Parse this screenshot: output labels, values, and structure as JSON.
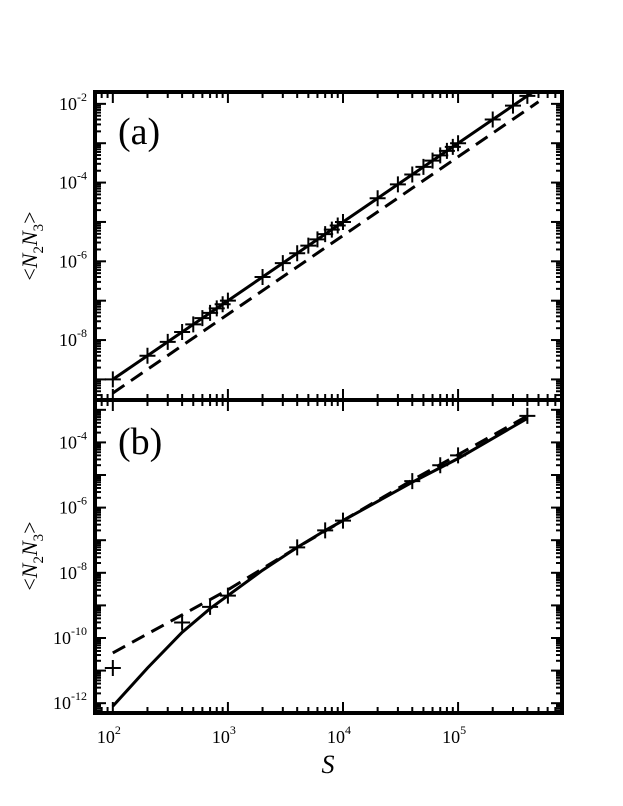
{
  "chart_data": [
    {
      "type": "line",
      "panel_label": "(a)",
      "ylabel": "<N2N3>",
      "ylabel_parts": {
        "open": "<",
        "n1": "N",
        "s1": "2",
        "n2": "N",
        "s2": "3",
        "close": ">"
      },
      "xscale": "log",
      "yscale": "log",
      "xlim": [
        70,
        800000
      ],
      "ylim": [
        3e-10,
        0.02
      ],
      "yticks": [
        {
          "base": "10",
          "exp": "-8",
          "value": 1e-08
        },
        {
          "base": "10",
          "exp": "-6",
          "value": 1e-06
        },
        {
          "base": "10",
          "exp": "-4",
          "value": 0.0001
        },
        {
          "base": "10",
          "exp": "-2",
          "value": 0.01
        }
      ],
      "grid": false,
      "series": [
        {
          "style": "solid",
          "x": [
            100,
            1000000
          ],
          "y": [
            1e-09,
            0.1
          ]
        },
        {
          "style": "dashed",
          "x": [
            100,
            500000
          ],
          "y": [
            4.5e-10,
            0.0113
          ]
        },
        {
          "style": "markers-plus",
          "x": [
            100,
            200,
            300,
            400,
            500,
            600,
            700,
            800,
            900,
            1000,
            2000,
            3000,
            4000,
            5000,
            6000,
            7000,
            8000,
            9000,
            10000,
            20000,
            30000,
            40000,
            50000,
            60000,
            70000,
            80000,
            90000,
            100000,
            200000,
            300000,
            400000,
            500000
          ],
          "y": [
            1e-09,
            4e-09,
            9e-09,
            1.6e-08,
            2.5e-08,
            3.6e-08,
            4.9e-08,
            6.4e-08,
            8.1e-08,
            1e-07,
            4e-07,
            9e-07,
            1.6e-06,
            2.5e-06,
            3.6e-06,
            4.9e-06,
            6.4e-06,
            8.1e-06,
            1e-05,
            4e-05,
            9e-05,
            0.00016,
            0.00025,
            0.00036,
            0.00049,
            0.00064,
            0.00081,
            0.001,
            0.004,
            0.009,
            0.016,
            0.025
          ]
        }
      ]
    },
    {
      "type": "line",
      "panel_label": "(b)",
      "ylabel": "<N2N3>",
      "ylabel_parts": {
        "open": "<",
        "n1": "N",
        "s1": "2",
        "n2": "N",
        "s2": "3",
        "close": ">"
      },
      "xlabel": "S",
      "xscale": "log",
      "yscale": "log",
      "xlim": [
        70,
        800000
      ],
      "ylim": [
        5e-13,
        0.002
      ],
      "xticks": [
        {
          "base": "10",
          "exp": "2",
          "value": 100
        },
        {
          "base": "10",
          "exp": "3",
          "value": 1000
        },
        {
          "base": "10",
          "exp": "4",
          "value": 10000
        },
        {
          "base": "10",
          "exp": "5",
          "value": 100000
        }
      ],
      "yticks": [
        {
          "base": "10",
          "exp": "-12",
          "value": 1e-12
        },
        {
          "base": "10",
          "exp": "-10",
          "value": 1e-10
        },
        {
          "base": "10",
          "exp": "-8",
          "value": 1e-08
        },
        {
          "base": "10",
          "exp": "-6",
          "value": 1e-06
        },
        {
          "base": "10",
          "exp": "-4",
          "value": 0.0001
        }
      ],
      "grid": false,
      "series": [
        {
          "style": "solid",
          "x": [
            100,
            200,
            400,
            700,
            1000,
            2000,
            4000,
            7000,
            10000,
            40000,
            100000,
            400000
          ],
          "y": [
            8e-13,
            1.2e-11,
            1.5e-10,
            8e-10,
            2e-09,
            1.2e-08,
            6e-08,
            2e-07,
            4e-07,
            6e-06,
            3.2e-05,
            0.00055
          ]
        },
        {
          "style": "dashed",
          "x": [
            100,
            1000,
            4000,
            10000,
            40000,
            100000,
            400000
          ],
          "y": [
            3.5e-11,
            3e-09,
            6e-08,
            4e-07,
            7e-06,
            4.2e-05,
            0.00065
          ]
        },
        {
          "style": "markers-plus",
          "x": [
            100,
            400,
            700,
            1000,
            4000,
            7000,
            10000,
            40000,
            70000,
            100000,
            400000
          ],
          "y": [
            1.2e-11,
            3e-10,
            9e-10,
            2e-09,
            6e-08,
            2e-07,
            4e-07,
            6.5e-06,
            2e-05,
            4e-05,
            0.00065
          ]
        }
      ]
    }
  ]
}
